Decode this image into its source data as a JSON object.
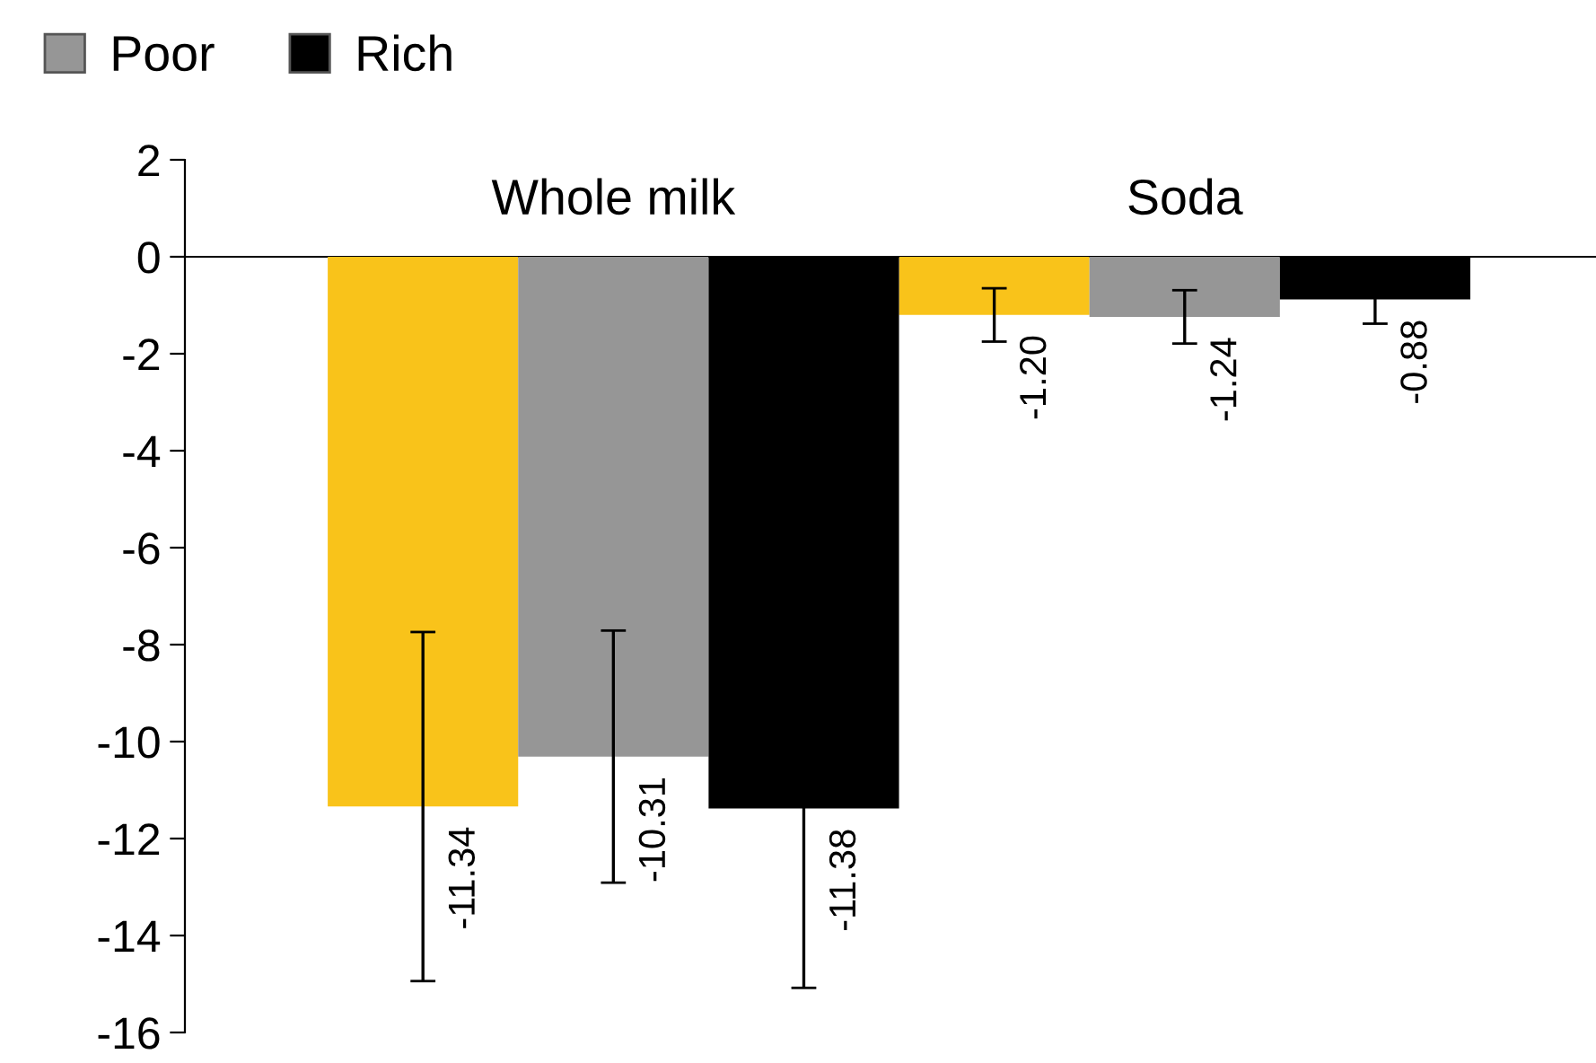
{
  "chart_data": {
    "type": "bar",
    "categories": [
      "Whole milk",
      "Soda"
    ],
    "series": [
      {
        "color": "#f9c31a",
        "values": [
          -11.34,
          -1.2
        ],
        "errors": [
          3.6,
          0.55
        ],
        "value_labels": [
          "-11.34",
          "-1.20"
        ]
      },
      {
        "name": "Poor",
        "color": "#969696",
        "values": [
          -10.31,
          -1.24
        ],
        "errors": [
          2.6,
          0.55
        ],
        "value_labels": [
          "-10.31",
          "-1.24"
        ]
      },
      {
        "name": "Rich",
        "color": "#000000",
        "values": [
          -11.38,
          -0.88
        ],
        "errors": [
          3.7,
          0.5
        ],
        "value_labels": [
          "-11.38",
          "-0.88"
        ]
      }
    ],
    "ylim": [
      -16,
      2
    ],
    "yticks": [
      -16,
      -14,
      -12,
      -10,
      -8,
      -6,
      -4,
      -2,
      0,
      2
    ],
    "grid": false,
    "legend": "top left"
  }
}
